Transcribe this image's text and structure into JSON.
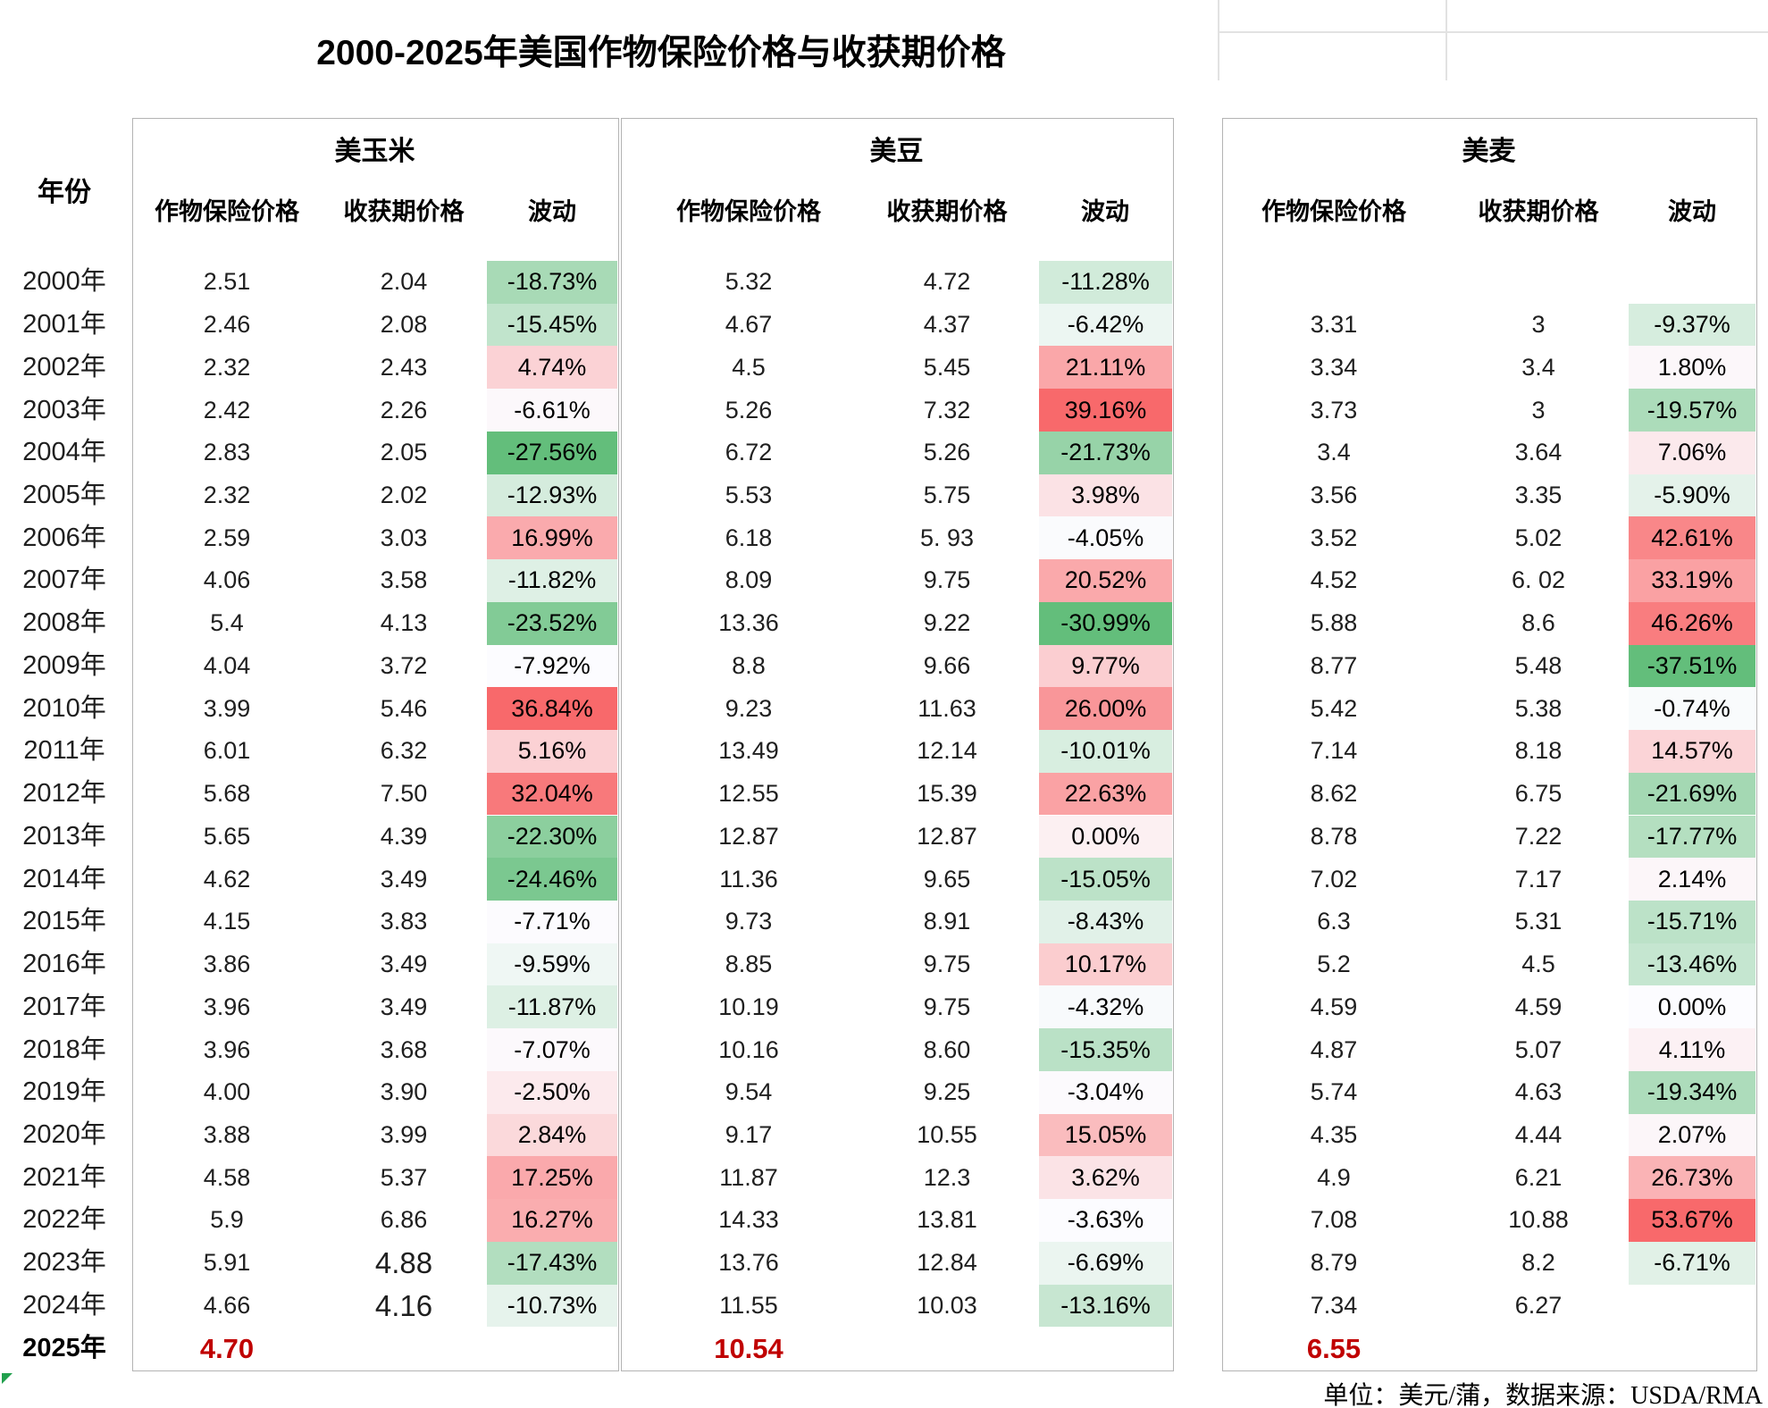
{
  "title": "2000-2025年美国作物保险价格与收获期价格",
  "footer": "单位：美元/蒲，数据来源：USDA/RMA",
  "header": {
    "year_label": "年份",
    "columns": [
      "作物保险价格",
      "收获期价格",
      "波动"
    ]
  },
  "colors": {
    "scale_min_green": "#63BE7B",
    "scale_mid_white": "#FCFCFF",
    "scale_max_red": "#F8696B",
    "highlight_red": "#C00000",
    "table_border": "#B3B3B3",
    "faint_grid": "#E2E2E2",
    "marker_green": "#21A04D"
  },
  "chart_data": {
    "type": "table",
    "title": "2000-2025年美国作物保险价格与收获期价格",
    "unit": "美元/蒲",
    "source": "USDA/RMA",
    "years": [
      "2000年",
      "2001年",
      "2002年",
      "2003年",
      "2004年",
      "2005年",
      "2006年",
      "2007年",
      "2008年",
      "2009年",
      "2010年",
      "2011年",
      "2012年",
      "2013年",
      "2014年",
      "2015年",
      "2016年",
      "2017年",
      "2018年",
      "2019年",
      "2020年",
      "2021年",
      "2022年",
      "2023年",
      "2024年",
      "2025年"
    ],
    "crops": [
      {
        "name": "美玉米",
        "columns": [
          "作物保险价格",
          "收获期价格",
          "波动"
        ],
        "rows": [
          [
            "2.51",
            "2.04",
            "-18.73%"
          ],
          [
            "2.46",
            "2.08",
            "-15.45%"
          ],
          [
            "2.32",
            "2.43",
            "4.74%"
          ],
          [
            "2.42",
            "2.26",
            "-6.61%"
          ],
          [
            "2.83",
            "2.05",
            "-27.56%"
          ],
          [
            "2.32",
            "2.02",
            "-12.93%"
          ],
          [
            "2.59",
            "3.03",
            "16.99%"
          ],
          [
            "4.06",
            "3.58",
            "-11.82%"
          ],
          [
            "5.4",
            "4.13",
            "-23.52%"
          ],
          [
            "4.04",
            "3.72",
            "-7.92%"
          ],
          [
            "3.99",
            "5.46",
            "36.84%"
          ],
          [
            "6.01",
            "6.32",
            "5.16%"
          ],
          [
            "5.68",
            "7.50",
            "32.04%"
          ],
          [
            "5.65",
            "4.39",
            "-22.30%"
          ],
          [
            "4.62",
            "3.49",
            "-24.46%"
          ],
          [
            "4.15",
            "3.83",
            "-7.71%"
          ],
          [
            "3.86",
            "3.49",
            "-9.59%"
          ],
          [
            "3.96",
            "3.49",
            "-11.87%"
          ],
          [
            "3.96",
            "3.68",
            "-7.07%"
          ],
          [
            "4.00",
            "3.90",
            "-2.50%"
          ],
          [
            "3.88",
            "3.99",
            "2.84%"
          ],
          [
            "4.58",
            "5.37",
            "17.25%"
          ],
          [
            "5.9",
            "6.86",
            "16.27%"
          ],
          [
            "5.91",
            "4.88",
            "-17.43%"
          ],
          [
            "4.66",
            "4.16",
            "-10.73%"
          ],
          [
            "4.70",
            "",
            ""
          ]
        ]
      },
      {
        "name": "美豆",
        "columns": [
          "作物保险价格",
          "收获期价格",
          "波动"
        ],
        "rows": [
          [
            "5.32",
            "4.72",
            "-11.28%"
          ],
          [
            "4.67",
            "4.37",
            "-6.42%"
          ],
          [
            "4.5",
            "5.45",
            "21.11%"
          ],
          [
            "5.26",
            "7.32",
            "39.16%"
          ],
          [
            "6.72",
            "5.26",
            "-21.73%"
          ],
          [
            "5.53",
            "5.75",
            "3.98%"
          ],
          [
            "6.18",
            "5. 93",
            "-4.05%"
          ],
          [
            "8.09",
            "9.75",
            "20.52%"
          ],
          [
            "13.36",
            "9.22",
            "-30.99%"
          ],
          [
            "8.8",
            "9.66",
            "9.77%"
          ],
          [
            "9.23",
            "11.63",
            "26.00%"
          ],
          [
            "13.49",
            "12.14",
            "-10.01%"
          ],
          [
            "12.55",
            "15.39",
            "22.63%"
          ],
          [
            "12.87",
            "12.87",
            "0.00%"
          ],
          [
            "11.36",
            "9.65",
            "-15.05%"
          ],
          [
            "9.73",
            "8.91",
            "-8.43%"
          ],
          [
            "8.85",
            "9.75",
            "10.17%"
          ],
          [
            "10.19",
            "9.75",
            "-4.32%"
          ],
          [
            "10.16",
            "8.60",
            "-15.35%"
          ],
          [
            "9.54",
            "9.25",
            "-3.04%"
          ],
          [
            "9.17",
            "10.55",
            "15.05%"
          ],
          [
            "11.87",
            "12.3",
            "3.62%"
          ],
          [
            "14.33",
            "13.81",
            "-3.63%"
          ],
          [
            "13.76",
            "12.84",
            "-6.69%"
          ],
          [
            "11.55",
            "10.03",
            "-13.16%"
          ],
          [
            "10.54",
            "",
            ""
          ]
        ]
      },
      {
        "name": "美麦",
        "columns": [
          "作物保险价格",
          "收获期价格",
          "波动"
        ],
        "rows": [
          [
            "",
            "",
            ""
          ],
          [
            "3.31",
            "3",
            "-9.37%"
          ],
          [
            "3.34",
            "3.4",
            "1.80%"
          ],
          [
            "3.73",
            "3",
            "-19.57%"
          ],
          [
            "3.4",
            "3.64",
            "7.06%"
          ],
          [
            "3.56",
            "3.35",
            "-5.90%"
          ],
          [
            "3.52",
            "5.02",
            "42.61%"
          ],
          [
            "4.52",
            "6. 02",
            "33.19%"
          ],
          [
            "5.88",
            "8.6",
            "46.26%"
          ],
          [
            "8.77",
            "5.48",
            "-37.51%"
          ],
          [
            "5.42",
            "5.38",
            "-0.74%"
          ],
          [
            "7.14",
            "8.18",
            "14.57%"
          ],
          [
            "8.62",
            "6.75",
            "-21.69%"
          ],
          [
            "8.78",
            "7.22",
            "-17.77%"
          ],
          [
            "7.02",
            "7.17",
            "2.14%"
          ],
          [
            "6.3",
            "5.31",
            "-15.71%"
          ],
          [
            "5.2",
            "4.5",
            "-13.46%"
          ],
          [
            "4.59",
            "4.59",
            "0.00%"
          ],
          [
            "4.87",
            "5.07",
            "4.11%"
          ],
          [
            "5.74",
            "4.63",
            "-19.34%"
          ],
          [
            "4.35",
            "4.44",
            "2.07%"
          ],
          [
            "4.9",
            "6.21",
            "26.73%"
          ],
          [
            "7.08",
            "10.88",
            "53.67%"
          ],
          [
            "8.79",
            "8.2",
            "-6.71%"
          ],
          [
            "7.34",
            "6.27",
            ""
          ],
          [
            "6.55",
            "",
            ""
          ]
        ]
      }
    ]
  }
}
